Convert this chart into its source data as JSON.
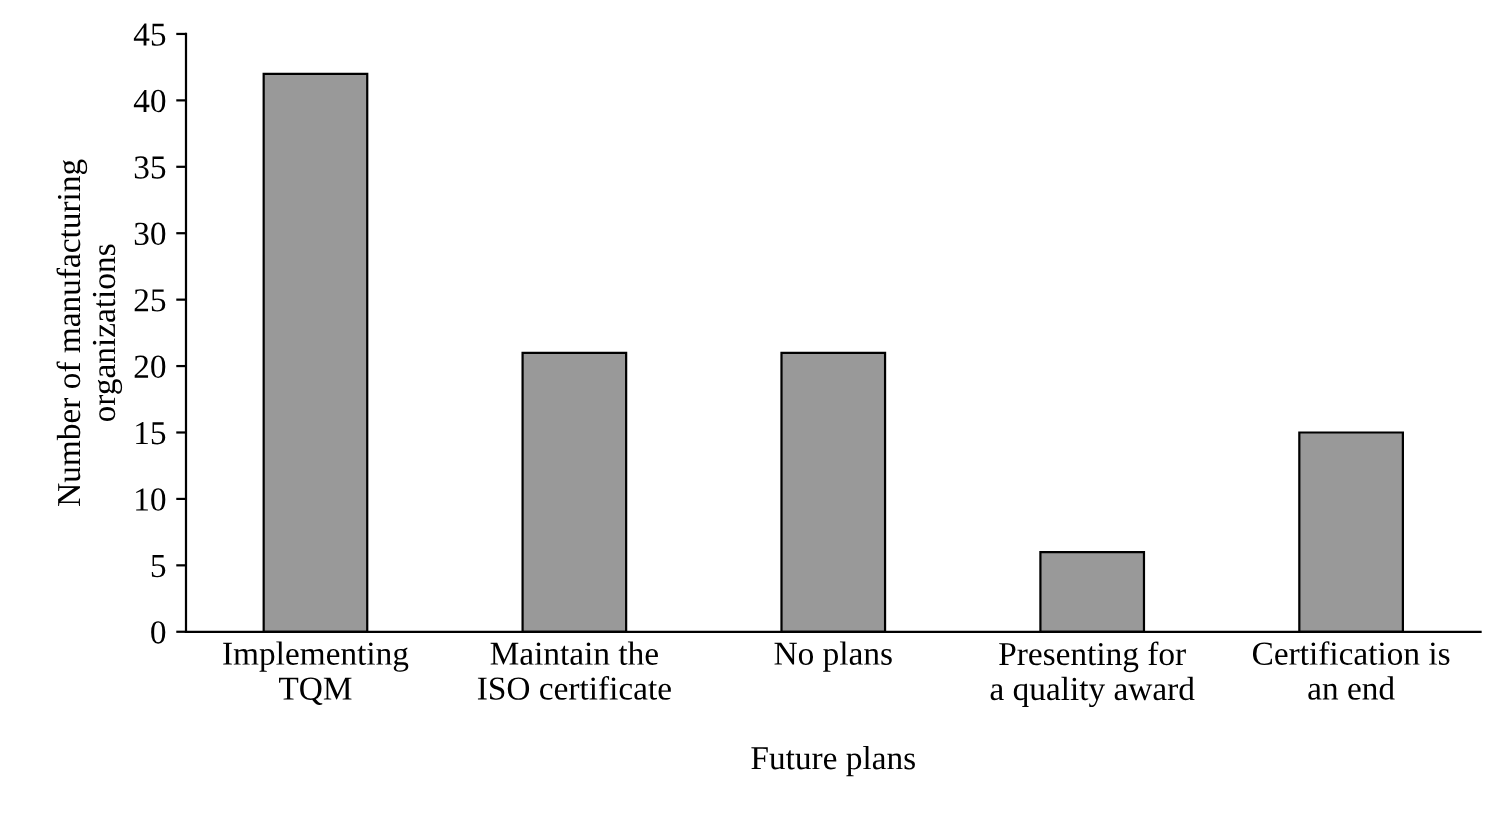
{
  "chart_data": {
    "type": "bar",
    "xlabel": "Future plans",
    "ylabel": "Number of manufacturing\norganizations",
    "categories": [
      "Implementing\nTQM",
      "Maintain the\nISO certificate",
      "No plans",
      "Presenting for\na quality award",
      "Certification is\nan end"
    ],
    "values": [
      42,
      21,
      21,
      6,
      15
    ],
    "color": "#999999",
    "ylim": [
      0,
      45
    ],
    "yticks": [
      0,
      5,
      10,
      15,
      20,
      25,
      30,
      35,
      40,
      45
    ],
    "grid": false,
    "legend": false
  }
}
